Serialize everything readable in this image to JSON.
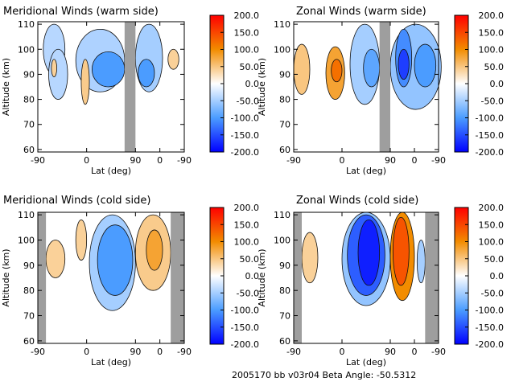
{
  "footer": {
    "caption": "2005170 bb v03r04   Beta Angle: -50.5312"
  },
  "colorbar": {
    "ticks": [
      "200.0",
      "150.0",
      "100.0",
      "50.0",
      "0.0",
      "-50.0",
      "-100.0",
      "-150.0",
      "-200.0"
    ],
    "range": [
      -200,
      200
    ],
    "colors": {
      "high": "#ff0000",
      "mid_high": "#f28c00",
      "zero": "#ffffff",
      "mid_low": "#4b9cff",
      "low": "#0000ff"
    }
  },
  "chart_data": [
    {
      "type": "heatmap",
      "title": "Meridional Winds (warm side)",
      "xlabel": "Lat (deg)",
      "ylabel": "Altitude (km)",
      "xticks": [
        "-90",
        "0",
        "90",
        "0",
        "-90"
      ],
      "yticks": [
        "60",
        "70",
        "80",
        "90",
        "100",
        "110"
      ],
      "ylim": [
        59,
        111
      ],
      "data_gaps": [
        [
          70,
          90
        ]
      ],
      "no_data_colour": "#9e9e9e",
      "regions": [
        {
          "lat": [
            -80,
            -40
          ],
          "alt": [
            90,
            110
          ],
          "value": -40
        },
        {
          "lat": [
            -70,
            -35
          ],
          "alt": [
            80,
            100
          ],
          "value": -40
        },
        {
          "lat": [
            -20,
            70
          ],
          "alt": [
            83,
            108
          ],
          "value": -45
        },
        {
          "lat": [
            10,
            70
          ],
          "alt": [
            85,
            99
          ],
          "value": -100
        },
        {
          "lat": [
            -65,
            -55
          ],
          "alt": [
            89,
            96
          ],
          "value": 40
        },
        {
          "lat": [
            -10,
            5
          ],
          "alt": [
            78,
            96
          ],
          "value": 45
        },
        {
          "lat": [
            90,
            140
          ],
          "alt": [
            83,
            110
          ],
          "value": -50
        },
        {
          "lat": [
            95,
            125
          ],
          "alt": [
            85,
            96
          ],
          "value": -100
        },
        {
          "lat": [
            150,
            170
          ],
          "alt": [
            92,
            100
          ],
          "value": 40
        }
      ]
    },
    {
      "type": "heatmap",
      "title": "Zonal Winds (warm side)",
      "xlabel": "Lat (deg)",
      "ylabel": "Altitude (km)",
      "xticks": [
        "-90",
        "0",
        "90",
        "0",
        "-90"
      ],
      "yticks": [
        "60",
        "70",
        "80",
        "90",
        "100",
        "110"
      ],
      "ylim": [
        59,
        111
      ],
      "data_gaps": [
        [
          70,
          90
        ]
      ],
      "no_data_colour": "#9e9e9e",
      "regions": [
        {
          "lat": [
            -90,
            -60
          ],
          "alt": [
            82,
            102
          ],
          "value": 50
        },
        {
          "lat": [
            -30,
            5
          ],
          "alt": [
            80,
            101
          ],
          "value": 80
        },
        {
          "lat": [
            -20,
            0
          ],
          "alt": [
            87,
            96
          ],
          "value": 120
        },
        {
          "lat": [
            15,
            70
          ],
          "alt": [
            78,
            110
          ],
          "value": -50
        },
        {
          "lat": [
            40,
            70
          ],
          "alt": [
            85,
            100
          ],
          "value": -90
        },
        {
          "lat": [
            90,
            185
          ],
          "alt": [
            76,
            110
          ],
          "value": -60
        },
        {
          "lat": [
            100,
            130
          ],
          "alt": [
            85,
            108
          ],
          "value": -110
        },
        {
          "lat": [
            105,
            125
          ],
          "alt": [
            88,
            100
          ],
          "value": -160
        },
        {
          "lat": [
            135,
            175
          ],
          "alt": [
            85,
            102
          ],
          "value": -100
        }
      ]
    },
    {
      "type": "heatmap",
      "title": "Meridional Winds (cold side)",
      "xlabel": "Lat (deg)",
      "ylabel": "Altitude (km)",
      "xticks": [
        "-90",
        "0",
        "90",
        "0",
        "-90"
      ],
      "yticks": [
        "60",
        "70",
        "80",
        "90",
        "100",
        "110"
      ],
      "ylim": [
        59,
        111
      ],
      "data_gaps": [
        [
          -90,
          -75
        ],
        [
          155,
          180
        ]
      ],
      "no_data_colour": "#9e9e9e",
      "regions": [
        {
          "lat": [
            -75,
            -40
          ],
          "alt": [
            85,
            100
          ],
          "value": 40
        },
        {
          "lat": [
            -20,
            0
          ],
          "alt": [
            92,
            108
          ],
          "value": 40
        },
        {
          "lat": [
            5,
            90
          ],
          "alt": [
            72,
            110
          ],
          "value": -50
        },
        {
          "lat": [
            20,
            85
          ],
          "alt": [
            78,
            106
          ],
          "value": -100
        },
        {
          "lat": [
            90,
            155
          ],
          "alt": [
            80,
            110
          ],
          "value": 45
        },
        {
          "lat": [
            110,
            140
          ],
          "alt": [
            88,
            104
          ],
          "value": 80
        }
      ]
    },
    {
      "type": "heatmap",
      "title": "Zonal Winds (cold side)",
      "xlabel": "Lat (deg)",
      "ylabel": "Altitude (km)",
      "xticks": [
        "-90",
        "0",
        "90",
        "0",
        "-90"
      ],
      "yticks": [
        "60",
        "70",
        "80",
        "90",
        "100",
        "110"
      ],
      "ylim": [
        59,
        111
      ],
      "data_gaps": [
        [
          -90,
          -75
        ],
        [
          155,
          180
        ]
      ],
      "no_data_colour": "#9e9e9e",
      "regions": [
        {
          "lat": [
            -75,
            -45
          ],
          "alt": [
            83,
            103
          ],
          "value": 40
        },
        {
          "lat": [
            0,
            90
          ],
          "alt": [
            74,
            111
          ],
          "value": -60
        },
        {
          "lat": [
            10,
            80
          ],
          "alt": [
            78,
            110
          ],
          "value": -140
        },
        {
          "lat": [
            30,
            70
          ],
          "alt": [
            82,
            108
          ],
          "value": -180
        },
        {
          "lat": [
            90,
            135
          ],
          "alt": [
            76,
            111
          ],
          "value": 100
        },
        {
          "lat": [
            95,
            125
          ],
          "alt": [
            82,
            109
          ],
          "value": 140
        },
        {
          "lat": [
            140,
            155
          ],
          "alt": [
            83,
            100
          ],
          "value": -50
        }
      ]
    }
  ]
}
